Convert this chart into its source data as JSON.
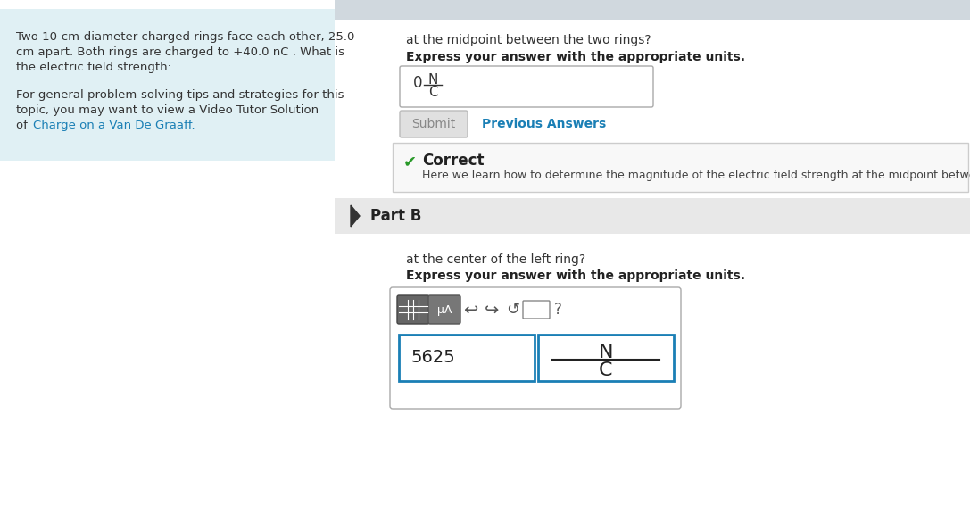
{
  "bg_color": "#ffffff",
  "left_panel_bg": "#e0f0f4",
  "left_panel_text_lines": [
    "Two 10-cm-diameter charged rings face each other, 25.0",
    "cm apart. Both rings are charged to +40.0 nC . What is",
    "the electric field strength:"
  ],
  "left_panel_tip_lines": [
    "For general problem-solving tips and strategies for this",
    "topic, you may want to view a Video Tutor Solution",
    "of "
  ],
  "link_text": "Charge on a Van De Graaff",
  "link_color": "#1a7fb5",
  "top_bar_color": "#d0d8de",
  "part_a_question": "at the midpoint between the two rings?",
  "part_a_bold": "Express your answer with the appropriate units.",
  "part_a_answer": "0",
  "part_a_units_num": "N",
  "part_a_units_den": "C",
  "submit_btn_text": "Submit",
  "submit_btn_bg": "#e0e0e0",
  "submit_btn_color": "#888888",
  "prev_answers_text": "Previous Answers",
  "prev_answers_color": "#1a7fb5",
  "correct_box_bg": "#f8f8f8",
  "correct_box_border": "#cccccc",
  "checkmark_color": "#2a9a2a",
  "correct_text": "Correct",
  "correct_detail": "Here we learn how to determine the magnitude of the electric field strength at the midpoint between tw",
  "part_b_header_bg": "#e8e8e8",
  "part_b_text": "Part B",
  "part_b_question": "at the center of the left ring?",
  "part_b_bold": "Express your answer with the appropriate units.",
  "answer_value": "5625",
  "units_num": "N",
  "units_den": "C",
  "input_border_color": "#1a7fb5"
}
